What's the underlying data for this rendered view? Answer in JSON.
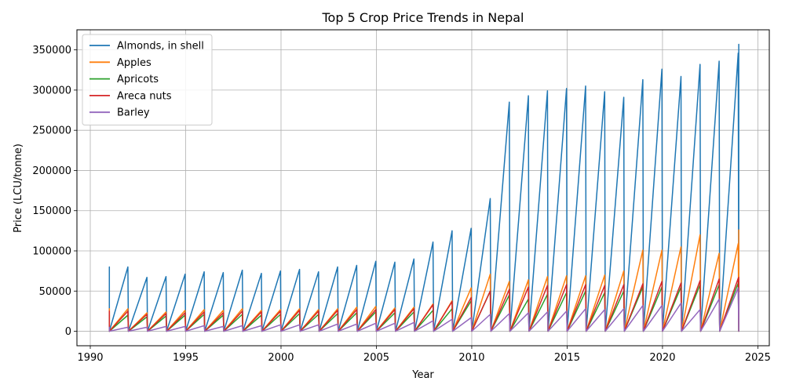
{
  "chart_data": {
    "type": "line",
    "title": "Top 5 Crop Price Trends in Nepal",
    "xlabel": "Year",
    "ylabel": "Price (LCU/tonne)",
    "xlim": [
      1989.3,
      2025.6
    ],
    "ylim": [
      -18000,
      375000
    ],
    "x_ticks": [
      1990,
      1995,
      2000,
      2005,
      2010,
      2015,
      2020,
      2025
    ],
    "y_ticks": [
      0,
      50000,
      100000,
      150000,
      200000,
      250000,
      300000,
      350000
    ],
    "grid": true,
    "legend_position": "upper-left",
    "series": [
      {
        "name": "Almonds, in shell",
        "color": "#1f77b4",
        "peaks": [
          [
            1991,
            80000
          ],
          [
            1992,
            67000
          ],
          [
            1993,
            68000
          ],
          [
            1994,
            71000
          ],
          [
            1995,
            74000
          ],
          [
            1996,
            73000
          ],
          [
            1997,
            76000
          ],
          [
            1998,
            72000
          ],
          [
            1999,
            75000
          ],
          [
            2000,
            77000
          ],
          [
            2001,
            74000
          ],
          [
            2002,
            80000
          ],
          [
            2003,
            82000
          ],
          [
            2004,
            87000
          ],
          [
            2005,
            86000
          ],
          [
            2006,
            90000
          ],
          [
            2007,
            111000
          ],
          [
            2008,
            125000
          ],
          [
            2009,
            128000
          ],
          [
            2010,
            165000
          ],
          [
            2011,
            285000
          ],
          [
            2012,
            293000
          ],
          [
            2013,
            299000
          ],
          [
            2014,
            302000
          ],
          [
            2015,
            305000
          ],
          [
            2016,
            298000
          ],
          [
            2017,
            291000
          ],
          [
            2018,
            313000
          ],
          [
            2019,
            326000
          ],
          [
            2020,
            317000
          ],
          [
            2021,
            332000
          ],
          [
            2022,
            336000
          ],
          [
            2023,
            346000
          ],
          [
            2024,
            357000
          ]
        ]
      },
      {
        "name": "Apples",
        "color": "#ff7f0e",
        "peaks": [
          [
            1991,
            28000
          ],
          [
            1992,
            23000
          ],
          [
            1993,
            24000
          ],
          [
            1994,
            26000
          ],
          [
            1995,
            27000
          ],
          [
            1996,
            26000
          ],
          [
            1997,
            28000
          ],
          [
            1998,
            26000
          ],
          [
            1999,
            27000
          ],
          [
            2000,
            28000
          ],
          [
            2001,
            27000
          ],
          [
            2002,
            28000
          ],
          [
            2003,
            30000
          ],
          [
            2004,
            31000
          ],
          [
            2005,
            29000
          ],
          [
            2006,
            30000
          ],
          [
            2007,
            34000
          ],
          [
            2008,
            38000
          ],
          [
            2009,
            54000
          ],
          [
            2010,
            71000
          ],
          [
            2011,
            62000
          ],
          [
            2012,
            64000
          ],
          [
            2013,
            68000
          ],
          [
            2014,
            69000
          ],
          [
            2015,
            69000
          ],
          [
            2016,
            70000
          ],
          [
            2017,
            75000
          ],
          [
            2018,
            101000
          ],
          [
            2019,
            101000
          ],
          [
            2020,
            105000
          ],
          [
            2021,
            120000
          ],
          [
            2022,
            97000
          ],
          [
            2023,
            109000
          ],
          [
            2024,
            126000
          ]
        ]
      },
      {
        "name": "Apricots",
        "color": "#2ca02c",
        "peaks": [
          [
            1991,
            20000
          ],
          [
            1992,
            18000
          ],
          [
            1993,
            19000
          ],
          [
            1994,
            20000
          ],
          [
            1995,
            21000
          ],
          [
            1996,
            20000
          ],
          [
            1997,
            21000
          ],
          [
            1998,
            20000
          ],
          [
            1999,
            21000
          ],
          [
            2000,
            22000
          ],
          [
            2001,
            21000
          ],
          [
            2002,
            22000
          ],
          [
            2003,
            23000
          ],
          [
            2004,
            24000
          ],
          [
            2005,
            23000
          ],
          [
            2006,
            24000
          ],
          [
            2007,
            26000
          ],
          [
            2008,
            28000
          ],
          [
            2009,
            38000
          ],
          [
            2010,
            50000
          ],
          [
            2011,
            45000
          ],
          [
            2012,
            40000
          ],
          [
            2013,
            46000
          ],
          [
            2014,
            48000
          ],
          [
            2015,
            50000
          ],
          [
            2016,
            48000
          ],
          [
            2017,
            50000
          ],
          [
            2018,
            55000
          ],
          [
            2019,
            55000
          ],
          [
            2020,
            55000
          ],
          [
            2021,
            58000
          ],
          [
            2022,
            58000
          ],
          [
            2023,
            60000
          ],
          [
            2024,
            62000
          ]
        ]
      },
      {
        "name": "Areca nuts",
        "color": "#d62728",
        "peaks": [
          [
            1991,
            25000
          ],
          [
            1992,
            21000
          ],
          [
            1993,
            22000
          ],
          [
            1994,
            23000
          ],
          [
            1995,
            24000
          ],
          [
            1996,
            23000
          ],
          [
            1997,
            25000
          ],
          [
            1998,
            24000
          ],
          [
            1999,
            25000
          ],
          [
            2000,
            26000
          ],
          [
            2001,
            25000
          ],
          [
            2002,
            26000
          ],
          [
            2003,
            27000
          ],
          [
            2004,
            27000
          ],
          [
            2005,
            27000
          ],
          [
            2006,
            28000
          ],
          [
            2007,
            33000
          ],
          [
            2008,
            37000
          ],
          [
            2009,
            42000
          ],
          [
            2010,
            50000
          ],
          [
            2011,
            52000
          ],
          [
            2012,
            55000
          ],
          [
            2013,
            57000
          ],
          [
            2014,
            58000
          ],
          [
            2015,
            58000
          ],
          [
            2016,
            57000
          ],
          [
            2017,
            58000
          ],
          [
            2018,
            59000
          ],
          [
            2019,
            62000
          ],
          [
            2020,
            60000
          ],
          [
            2021,
            63000
          ],
          [
            2022,
            65000
          ],
          [
            2023,
            66000
          ],
          [
            2024,
            67000
          ]
        ]
      },
      {
        "name": "Barley",
        "color": "#9467bd",
        "peaks": [
          [
            1991,
            5000
          ],
          [
            1992,
            5000
          ],
          [
            1993,
            6000
          ],
          [
            1994,
            6000
          ],
          [
            1995,
            7000
          ],
          [
            1996,
            6000
          ],
          [
            1997,
            7000
          ],
          [
            1998,
            7000
          ],
          [
            1999,
            8000
          ],
          [
            2000,
            8000
          ],
          [
            2001,
            8000
          ],
          [
            2002,
            9000
          ],
          [
            2003,
            9000
          ],
          [
            2004,
            10000
          ],
          [
            2005,
            10000
          ],
          [
            2006,
            11000
          ],
          [
            2007,
            13000
          ],
          [
            2008,
            15000
          ],
          [
            2009,
            17000
          ],
          [
            2010,
            21000
          ],
          [
            2011,
            22000
          ],
          [
            2012,
            23000
          ],
          [
            2013,
            24000
          ],
          [
            2014,
            25000
          ],
          [
            2015,
            28000
          ],
          [
            2016,
            27000
          ],
          [
            2017,
            28000
          ],
          [
            2018,
            32000
          ],
          [
            2019,
            32000
          ],
          [
            2020,
            35000
          ],
          [
            2021,
            27000
          ],
          [
            2022,
            40000
          ],
          [
            2023,
            54000
          ],
          [
            2024,
            48000
          ]
        ]
      }
    ]
  }
}
